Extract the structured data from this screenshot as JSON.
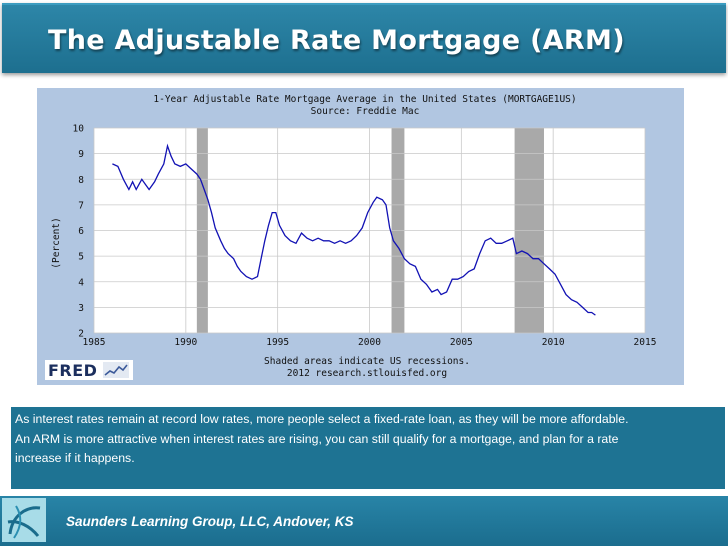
{
  "slide": {
    "title": "The Adjustable Rate Mortgage (ARM)",
    "body_lines": [
      "As interest rates remain at record low rates, more people  select a fixed-rate loan, as they will be more affordable.",
      "An ARM is more attractive when interest rates are rising,  you can still qualify for a mortgage, and plan for a rate",
      "increase if it happens."
    ],
    "footer": "Saunders Learning Group, LLC, Andover, KS",
    "fred_logo_text": "FRED"
  },
  "colors": {
    "title_bar": "#1f7393",
    "text_box": "#1e7393",
    "chart_frame": "#b1c6e1",
    "plot_bg": "#ffffff",
    "grid": "#c9c9c9",
    "line": "#1212b4",
    "recession": "#a9a9a9"
  },
  "chart_data": {
    "type": "line",
    "title": "1-Year Adjustable Rate Mortgage Average in the United States (MORTGAGE1US)",
    "subtitle": "Source: Freddie Mac",
    "ylabel": "(Percent)",
    "note_lines": [
      "Shaded areas indicate US recessions.",
      "2012 research.stlouisfed.org"
    ],
    "xlim": [
      1985,
      2015
    ],
    "ylim": [
      2,
      10
    ],
    "x_ticks": [
      1985,
      1990,
      1995,
      2000,
      2005,
      2010,
      2015
    ],
    "y_ticks": [
      2,
      3,
      4,
      5,
      6,
      7,
      8,
      9,
      10
    ],
    "grid": true,
    "recessions": [
      [
        1990.6,
        1991.2
      ],
      [
        2001.2,
        2001.9
      ],
      [
        2007.9,
        2009.5
      ]
    ],
    "series": [
      {
        "x": [
          1986.0,
          1986.3,
          1986.6,
          1986.9,
          1987.1,
          1987.3,
          1987.6,
          1987.8,
          1988.0,
          1988.3,
          1988.5,
          1988.8,
          1989.0,
          1989.2,
          1989.4,
          1989.7,
          1990.0,
          1990.3,
          1990.6,
          1990.8,
          1991.0,
          1991.2,
          1991.4,
          1991.6,
          1991.9,
          1992.1,
          1992.3,
          1992.6,
          1992.8,
          1993.0,
          1993.3,
          1993.6,
          1993.9,
          1994.1,
          1994.3,
          1994.5,
          1994.7,
          1994.9,
          1995.1,
          1995.4,
          1995.7,
          1996.0,
          1996.3,
          1996.6,
          1996.9,
          1997.2,
          1997.5,
          1997.8,
          1998.1,
          1998.4,
          1998.7,
          1999.0,
          1999.3,
          1999.6,
          1999.9,
          2000.2,
          2000.4,
          2000.7,
          2000.9,
          2001.1,
          2001.3,
          2001.6,
          2001.9,
          2002.2,
          2002.5,
          2002.8,
          2003.1,
          2003.4,
          2003.7,
          2003.9,
          2004.2,
          2004.5,
          2004.8,
          2005.1,
          2005.4,
          2005.7,
          2006.0,
          2006.3,
          2006.6,
          2006.9,
          2007.2,
          2007.5,
          2007.8,
          2008.0,
          2008.3,
          2008.6,
          2008.9,
          2009.2,
          2009.5,
          2009.8,
          2010.1,
          2010.4,
          2010.7,
          2011.0,
          2011.3,
          2011.6,
          2011.9,
          2012.1,
          2012.3
        ],
        "values": [
          8.6,
          8.5,
          8.0,
          7.6,
          7.9,
          7.6,
          8.0,
          7.8,
          7.6,
          7.9,
          8.2,
          8.6,
          9.3,
          8.9,
          8.6,
          8.5,
          8.6,
          8.4,
          8.2,
          8.0,
          7.6,
          7.2,
          6.7,
          6.1,
          5.6,
          5.3,
          5.1,
          4.9,
          4.6,
          4.4,
          4.2,
          4.1,
          4.2,
          4.9,
          5.6,
          6.2,
          6.7,
          6.7,
          6.2,
          5.8,
          5.6,
          5.5,
          5.9,
          5.7,
          5.6,
          5.7,
          5.6,
          5.6,
          5.5,
          5.6,
          5.5,
          5.6,
          5.8,
          6.1,
          6.7,
          7.1,
          7.3,
          7.2,
          7.0,
          6.1,
          5.6,
          5.3,
          4.9,
          4.7,
          4.6,
          4.1,
          3.9,
          3.6,
          3.7,
          3.5,
          3.6,
          4.1,
          4.1,
          4.2,
          4.4,
          4.5,
          5.1,
          5.6,
          5.7,
          5.5,
          5.5,
          5.6,
          5.7,
          5.1,
          5.2,
          5.1,
          4.9,
          4.9,
          4.7,
          4.5,
          4.3,
          3.9,
          3.5,
          3.3,
          3.2,
          3.0,
          2.8,
          2.8,
          2.7
        ]
      }
    ]
  }
}
